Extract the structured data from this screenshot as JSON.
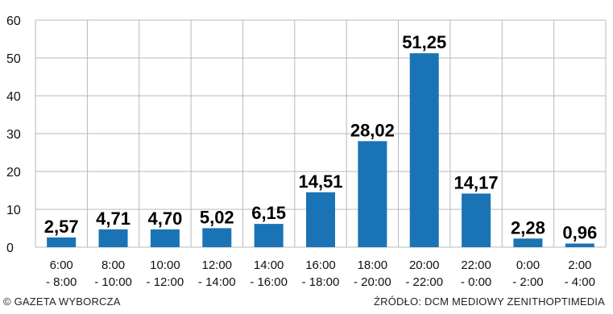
{
  "chart_data": {
    "type": "bar",
    "categories": [
      [
        "6:00",
        "- 8:00"
      ],
      [
        "8:00",
        "- 10:00"
      ],
      [
        "10:00",
        "- 12:00"
      ],
      [
        "12:00",
        "- 14:00"
      ],
      [
        "14:00",
        "- 16:00"
      ],
      [
        "16:00",
        "- 18:00"
      ],
      [
        "18:00",
        "- 20:00"
      ],
      [
        "20:00",
        "- 22:00"
      ],
      [
        "22:00",
        "- 0:00"
      ],
      [
        "0:00",
        "- 2:00"
      ],
      [
        "2:00",
        "- 4:00"
      ]
    ],
    "values": [
      2.57,
      4.71,
      4.7,
      5.02,
      6.15,
      14.51,
      28.02,
      51.25,
      14.17,
      2.28,
      0.96
    ],
    "value_labels": [
      "2,57",
      "4,71",
      "4,70",
      "5,02",
      "6,15",
      "14,51",
      "28,02",
      "51,25",
      "14,17",
      "2,28",
      "0,96"
    ],
    "y_ticks": [
      0,
      10,
      20,
      30,
      40,
      50,
      60
    ],
    "ylim": [
      0,
      60
    ],
    "grid": true,
    "bar_color": "#1a73b5",
    "grid_color": "#b8b8b8"
  },
  "footer": {
    "copyright": "© GAZETA WYBORCZA",
    "source": "ŹRÓDŁO: DCM MEDIOWY ZENITHOPTIMEDIA"
  }
}
